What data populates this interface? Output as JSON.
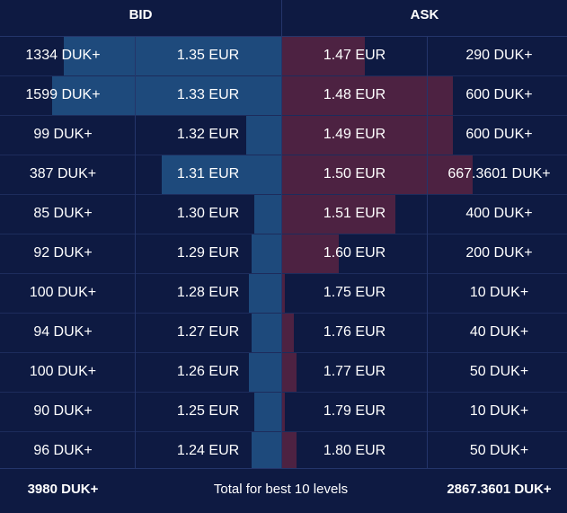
{
  "header": {
    "bid_label": "BID",
    "ask_label": "ASK"
  },
  "rows": [
    {
      "bid_qty": "1334 DUK+",
      "bid_price": "1.35 EUR",
      "ask_price": "1.47 EUR",
      "ask_qty": "290 DUK+"
    },
    {
      "bid_qty": "1599 DUK+",
      "bid_price": "1.33 EUR",
      "ask_price": "1.48 EUR",
      "ask_qty": "600 DUK+"
    },
    {
      "bid_qty": "99 DUK+",
      "bid_price": "1.32 EUR",
      "ask_price": "1.49 EUR",
      "ask_qty": "600 DUK+"
    },
    {
      "bid_qty": "387 DUK+",
      "bid_price": "1.31 EUR",
      "ask_price": "1.50 EUR",
      "ask_qty": "667.3601 DUK+"
    },
    {
      "bid_qty": "85 DUK+",
      "bid_price": "1.30 EUR",
      "ask_price": "1.51 EUR",
      "ask_qty": "400 DUK+"
    },
    {
      "bid_qty": "92 DUK+",
      "bid_price": "1.29 EUR",
      "ask_price": "1.60 EUR",
      "ask_qty": "200 DUK+"
    },
    {
      "bid_qty": "100 DUK+",
      "bid_price": "1.28 EUR",
      "ask_price": "1.75 EUR",
      "ask_qty": "10 DUK+"
    },
    {
      "bid_qty": "94 DUK+",
      "bid_price": "1.27 EUR",
      "ask_price": "1.76 EUR",
      "ask_qty": "40 DUK+"
    },
    {
      "bid_qty": "100 DUK+",
      "bid_price": "1.26 EUR",
      "ask_price": "1.77 EUR",
      "ask_qty": "50 DUK+"
    },
    {
      "bid_qty": "90 DUK+",
      "bid_price": "1.25 EUR",
      "ask_price": "1.79 EUR",
      "ask_qty": "10 DUK+"
    },
    {
      "bid_qty": "96 DUK+",
      "bid_price": "1.24 EUR",
      "ask_price": "1.80 EUR",
      "ask_qty": "50 DUK+"
    }
  ],
  "depth": {
    "bid_fraction": [
      0.8,
      0.84,
      0.13,
      0.44,
      0.1,
      0.11,
      0.12,
      0.11,
      0.12,
      0.1,
      0.11
    ],
    "ask_fraction": [
      0.29,
      0.6,
      0.6,
      0.67,
      0.4,
      0.2,
      0.01,
      0.04,
      0.05,
      0.01,
      0.05
    ]
  },
  "footer": {
    "bid_total": "3980 DUK+",
    "label": "Total for best 10 levels",
    "ask_total": "2867.3601 DUK+"
  },
  "colors": {
    "background": "#0e1a42",
    "bid_bar": "#1e4a7c",
    "ask_bar": "#4d2242",
    "text": "#ffffff"
  }
}
